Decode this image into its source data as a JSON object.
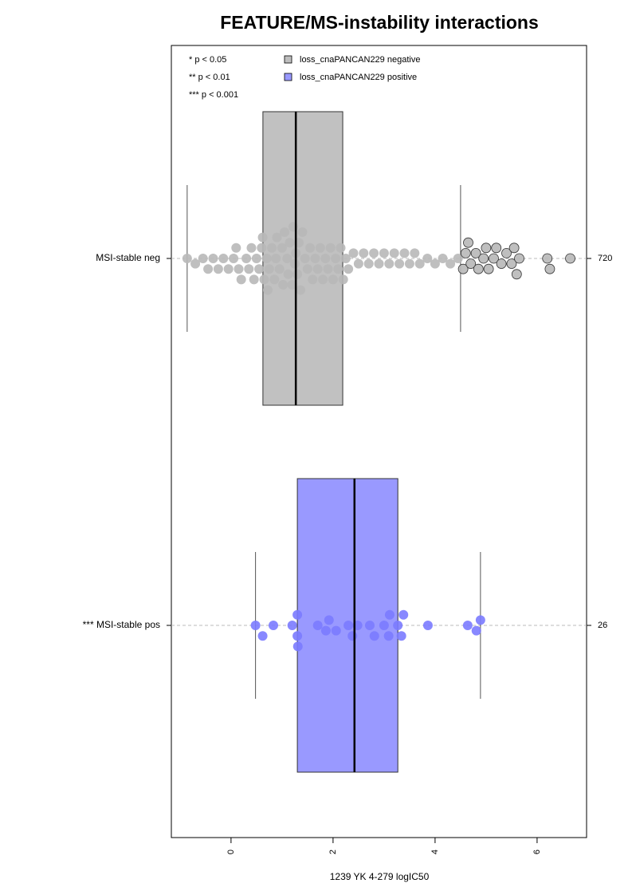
{
  "chart_data": {
    "type": "boxplot-swarm",
    "title": "FEATURE/MS-instability interactions",
    "x_label": "1239 YK 4-279 logIC50",
    "xlim": [
      -1.17,
      6.97
    ],
    "xticks": [
      0,
      2,
      4,
      6
    ],
    "significance_legend": [
      "* p < 0.05",
      "** p < 0.01",
      "*** p < 0.001"
    ],
    "series": [
      {
        "name": "loss_cnaPANCAN229 negative",
        "color": "#bebebe",
        "point_color": "#b8b8b8",
        "label": "MSI-stable neg",
        "n": 720,
        "whisker_low": -0.86,
        "q1": 0.625,
        "median": 1.27,
        "q3": 2.19,
        "whisker_high": 4.5,
        "values": [
          -0.86,
          -0.7,
          -0.55,
          -0.45,
          -0.35,
          -0.25,
          -0.15,
          -0.05,
          0.05,
          0.1,
          0.15,
          0.2,
          0.3,
          0.35,
          0.4,
          0.45,
          0.5,
          0.55,
          0.6,
          0.62,
          0.65,
          0.7,
          0.72,
          0.75,
          0.8,
          0.85,
          0.88,
          0.9,
          0.95,
          1.0,
          1.02,
          1.05,
          1.1,
          1.12,
          1.15,
          1.2,
          1.22,
          1.25,
          1.27,
          1.3,
          1.33,
          1.36,
          1.4,
          1.45,
          1.5,
          1.55,
          1.6,
          1.65,
          1.7,
          1.75,
          1.8,
          1.85,
          1.9,
          1.95,
          2.0,
          2.05,
          2.1,
          2.15,
          2.2,
          2.25,
          2.3,
          2.4,
          2.5,
          2.6,
          2.7,
          2.8,
          2.9,
          3.0,
          3.1,
          3.2,
          3.3,
          3.4,
          3.5,
          3.6,
          3.7,
          3.85,
          4.0,
          4.15,
          4.3,
          4.45,
          4.55,
          4.6,
          4.65,
          4.7,
          4.8,
          4.85,
          4.95,
          5.0,
          5.05,
          5.15,
          5.2,
          5.3,
          5.4,
          5.5,
          5.55,
          5.6,
          5.65,
          6.2,
          6.25,
          6.65
        ]
      },
      {
        "name": "loss_cnaPANCAN229 positive",
        "color": "#9999ff",
        "point_color": "#7b7bff",
        "label": "*** MSI-stable pos",
        "n": 26,
        "whisker_low": 0.48,
        "q1": 1.3,
        "median": 2.42,
        "q3": 3.27,
        "whisker_high": 4.89,
        "values": [
          0.48,
          0.62,
          0.83,
          1.2,
          1.3,
          1.3,
          1.31,
          1.7,
          1.86,
          1.92,
          2.06,
          2.3,
          2.38,
          2.48,
          2.72,
          2.81,
          3.0,
          3.09,
          3.11,
          3.27,
          3.34,
          3.38,
          3.86,
          4.64,
          4.81,
          4.89
        ]
      }
    ]
  }
}
